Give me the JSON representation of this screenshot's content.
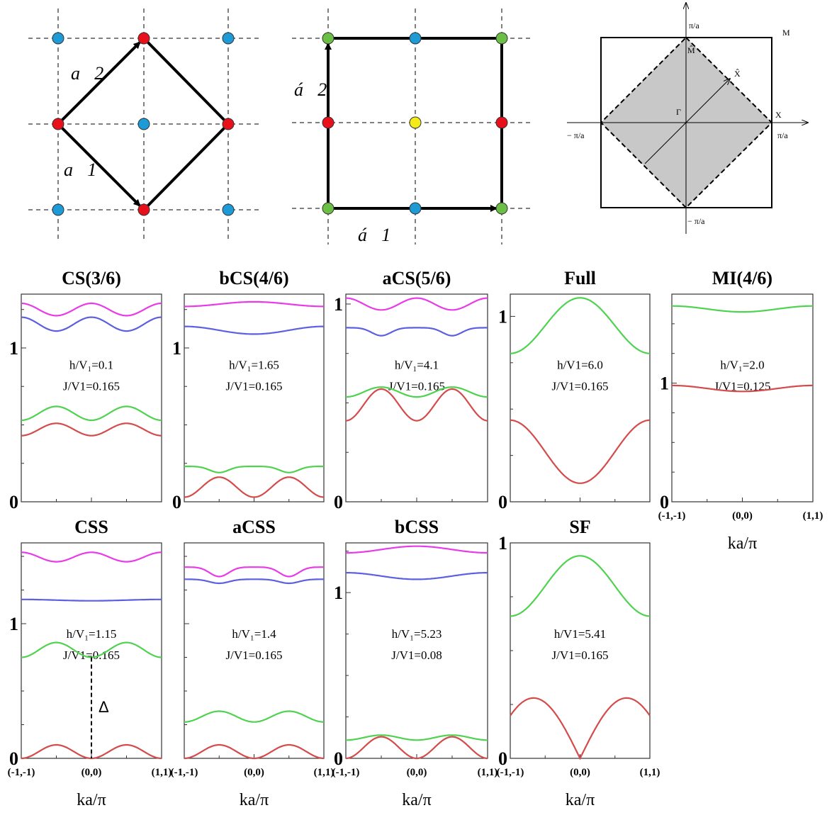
{
  "lattice_left": {
    "vector_1": "a⃗1",
    "vector_2": "a⃗2",
    "site_colors": {
      "blue": "#1e9bd7",
      "red": "#e8101a"
    }
  },
  "lattice_middle": {
    "vector_1": "á⃗1",
    "vector_2": "á⃗2",
    "site_colors": {
      "green": "#6cbf45",
      "red": "#e8101a",
      "blue": "#1e9bd7",
      "yellow": "#f3ea1a"
    }
  },
  "brillouin_zone": {
    "fill": "#c8c8c8",
    "labels": {
      "M": "M",
      "M_hat": "M̂",
      "X_hat": "X̂",
      "Gamma": "Γ",
      "X": "X",
      "pi_a_top": "π/a",
      "pi_a_right": "π/a",
      "minus_pi_a_left": "− π/a",
      "minus_pi_a_bottom": "− π/a"
    }
  },
  "xaxis": {
    "ticks": [
      "(-1,-1)",
      "(0,0)",
      "(1,1)"
    ],
    "label": "ka/π"
  },
  "colors": {
    "magenta": "#e83be8",
    "blue": "#5b5fe0",
    "green": "#4fd24f",
    "red": "#d44b4b"
  },
  "chart_data": [
    {
      "type": "line",
      "title": "CS(3/6)",
      "annotation": [
        "h/V₁=0.1",
        "J/V1=0.165"
      ],
      "ylim": [
        0,
        1.35
      ],
      "yticks": [
        "0",
        "1"
      ],
      "x": [
        -1,
        0,
        1
      ],
      "xticks_shown": false,
      "series": [
        {
          "color": "magenta",
          "min": 1.21,
          "max": 1.29,
          "shape": "cos4_max_center"
        },
        {
          "color": "blue",
          "min": 1.11,
          "max": 1.2,
          "shape": "cos4_max_center"
        },
        {
          "color": "green",
          "min": 0.53,
          "max": 0.62,
          "shape": "cos4_min_center"
        },
        {
          "color": "red",
          "min": 0.43,
          "max": 0.51,
          "shape": "cos4_min_center"
        }
      ]
    },
    {
      "type": "line",
      "title": "bCS(4/6)",
      "annotation": [
        "h/V₁=1.65",
        "J/V1=0.165"
      ],
      "ylim": [
        0,
        1.35
      ],
      "yticks": [
        "0",
        "1"
      ],
      "x": [
        -1,
        0,
        1
      ],
      "xticks_shown": false,
      "series": [
        {
          "color": "magenta",
          "min": 1.27,
          "max": 1.3,
          "shape": "cos2_max_center"
        },
        {
          "color": "blue",
          "min": 1.09,
          "max": 1.14,
          "shape": "cos2_max_ends"
        },
        {
          "color": "green",
          "min": 0.19,
          "max": 0.23,
          "shape": "dips_half"
        },
        {
          "color": "red",
          "min": 0.03,
          "max": 0.16,
          "shape": "humps_half"
        }
      ]
    },
    {
      "type": "line",
      "title": "aCS(5/6)",
      "annotation": [
        "h/V₁=4.1",
        "J/V1=0.165"
      ],
      "ylim": [
        0,
        1.05
      ],
      "yticks": [
        "0",
        "1"
      ],
      "x": [
        -1,
        0,
        1
      ],
      "xticks_shown": false,
      "series": [
        {
          "color": "magenta",
          "min": 0.97,
          "max": 1.03,
          "shape": "cos4_max_center"
        },
        {
          "color": "blue",
          "min": 0.84,
          "max": 0.88,
          "shape": "dips_half"
        },
        {
          "color": "green",
          "min": 0.53,
          "max": 0.58,
          "shape": "cos4_min_center"
        },
        {
          "color": "red",
          "min": 0.41,
          "max": 0.57,
          "shape": "cos4_min_center"
        }
      ]
    },
    {
      "type": "line",
      "title": "Full",
      "annotation": [
        "h/V1=6.0",
        "J/V1=0.165"
      ],
      "ylim": [
        0,
        1.12
      ],
      "yticks": [
        "0",
        "1"
      ],
      "x": [
        -1,
        0,
        1
      ],
      "xticks_shown": false,
      "series": [
        {
          "color": "green",
          "min": 0.8,
          "max": 1.1,
          "shape": "peak_center"
        },
        {
          "color": "red",
          "min": 0.1,
          "max": 0.44,
          "shape": "dip_center"
        }
      ]
    },
    {
      "type": "line",
      "title": "MI(4/6)",
      "annotation": [
        "h/V₁=2.0",
        "J/V1=0.125"
      ],
      "ylim": [
        0,
        1.75
      ],
      "yticks": [
        "0",
        "1"
      ],
      "x": [
        -1,
        0,
        1
      ],
      "xticks_shown": true,
      "series": [
        {
          "color": "green",
          "min": 1.6,
          "max": 1.65,
          "shape": "dip_center"
        },
        {
          "color": "red",
          "min": 0.93,
          "max": 0.98,
          "shape": "dip_center"
        }
      ]
    },
    {
      "type": "line",
      "title": "CSS",
      "annotation": [
        "h/V₁=1.15",
        "J/V1=0.165"
      ],
      "ylim": [
        0,
        1.6
      ],
      "yticks": [
        "0",
        "1"
      ],
      "x": [
        -1,
        0,
        1
      ],
      "xticks_shown": true,
      "gap_label": "Δ",
      "series": [
        {
          "color": "magenta",
          "min": 1.46,
          "max": 1.53,
          "shape": "cos4_max_center"
        },
        {
          "color": "blue",
          "min": 1.17,
          "max": 1.18,
          "shape": "cos2_min_center"
        },
        {
          "color": "green",
          "min": 0.75,
          "max": 0.86,
          "shape": "cos4_min_center"
        },
        {
          "color": "red",
          "min": 0.0,
          "max": 0.1,
          "shape": "cos4_min_center"
        }
      ]
    },
    {
      "type": "line",
      "title": "aCSS",
      "annotation": [
        "h/V₁=1.4",
        "J/V1=0.165"
      ],
      "ylim": [
        0,
        1.6
      ],
      "yticks": [],
      "x": [
        -1,
        0,
        1
      ],
      "xticks_shown": true,
      "series": [
        {
          "color": "magenta",
          "min": 1.35,
          "max": 1.42,
          "shape": "dips_half"
        },
        {
          "color": "blue",
          "min": 1.3,
          "max": 1.33,
          "shape": "dips_half_inv"
        },
        {
          "color": "green",
          "min": 0.27,
          "max": 0.35,
          "shape": "cos4_min_center"
        },
        {
          "color": "red",
          "min": 0.0,
          "max": 0.1,
          "shape": "cos4_min_center"
        }
      ]
    },
    {
      "type": "line",
      "title": "bCSS",
      "annotation": [
        "h/V₁=5.23",
        "J/V1=0.08"
      ],
      "ylim": [
        0,
        1.3
      ],
      "yticks": [
        "0",
        "1"
      ],
      "x": [
        -1,
        0,
        1
      ],
      "xticks_shown": true,
      "series": [
        {
          "color": "magenta",
          "min": 1.24,
          "max": 1.28,
          "shape": "cos2_max_center"
        },
        {
          "color": "blue",
          "min": 1.08,
          "max": 1.12,
          "shape": "cos2_max_ends"
        },
        {
          "color": "green",
          "min": 0.11,
          "max": 0.14,
          "shape": "cos4_min_center"
        },
        {
          "color": "red",
          "min": 0.0,
          "max": 0.13,
          "shape": "humps_half"
        }
      ]
    },
    {
      "type": "line",
      "title": "SF",
      "annotation": [
        "h/V1=5.41",
        "J/V1=0.165"
      ],
      "ylim": [
        0,
        1.0
      ],
      "yticks": [
        "0",
        "1"
      ],
      "x": [
        -1,
        0,
        1
      ],
      "xticks_shown": true,
      "series": [
        {
          "color": "green",
          "min": 0.66,
          "max": 0.94,
          "shape": "peak_center"
        },
        {
          "color": "red",
          "min": 0.0,
          "max": 0.28,
          "shape": "vcusp_center"
        }
      ]
    }
  ]
}
